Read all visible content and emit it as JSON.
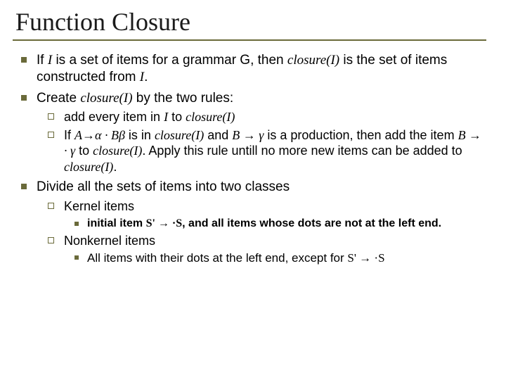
{
  "slide": {
    "title": "Function Closure",
    "colors": {
      "rule": "#6a6a3a",
      "bullet": "#6a6a3a",
      "text": "#000000",
      "background": "#ffffff"
    },
    "fonts": {
      "title_family": "Times New Roman",
      "title_size_pt": 36,
      "body_family": "Arial",
      "body_size_pt": 19,
      "italic_family": "Times New Roman"
    },
    "b1": {
      "pre": "If ",
      "I": "I",
      "mid1": " is a set of items for a grammar G, then ",
      "closureI": "closure(I)",
      "mid2": " is the set of items constructed from ",
      "I2": "I",
      "post": "."
    },
    "b2": {
      "pre": "Create ",
      "closureI": "closure(I)",
      "post": " by the two rules:"
    },
    "b2a": {
      "pre": "add every item in ",
      "I": "I",
      "mid": " to ",
      "closureI": "closure(I)"
    },
    "b2b": {
      "pre": "If ",
      "prod1": "A→α · Bβ",
      "mid1": " is in ",
      "closureI1": "closure(I)",
      "mid2": " and ",
      "prod2": "B → γ",
      "mid3": "  is a production, then add the item ",
      "prod3": "B → · γ",
      "mid4": "  to ",
      "closureI2": "closure(I)",
      "mid5": ". Apply this rule untill no more new items can be added to ",
      "closureI3": "closure(I)",
      "post": "."
    },
    "b3": {
      "text": "Divide all the sets of items into two classes"
    },
    "b3a": {
      "text": "Kernel items"
    },
    "b3a1": {
      "pre": "initial item ",
      "prod": "S' → ·S",
      "post": ", and all items whose dots are not at the left end."
    },
    "b3b": {
      "text": "Nonkernel items"
    },
    "b3b1": {
      "pre": "All items with their dots at the left end, except for ",
      "prod": "S' → ·S"
    }
  }
}
